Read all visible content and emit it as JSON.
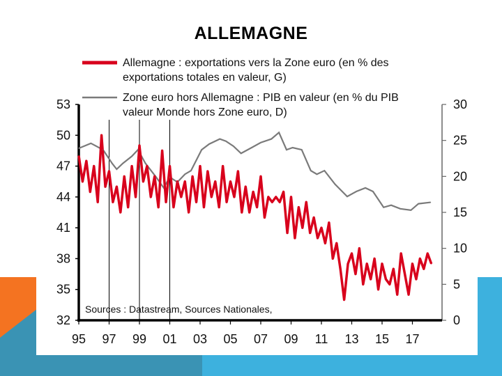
{
  "slide": {
    "title": "ALLEMAGNE",
    "colors": {
      "orange": "#f47321",
      "teal": "#3a93b4",
      "blue": "#3db1de"
    }
  },
  "chart_data": {
    "type": "line",
    "title": "ALLEMAGNE",
    "x_tick_labels": [
      "95",
      "97",
      "99",
      "01",
      "03",
      "05",
      "07",
      "09",
      "11",
      "13",
      "15",
      "17"
    ],
    "x_range": [
      1995,
      2019
    ],
    "y_left": {
      "range": [
        32,
        53
      ],
      "ticks": [
        "32",
        "35",
        "38",
        "41",
        "44",
        "47",
        "50",
        "53"
      ]
    },
    "y_right": {
      "range": [
        0,
        30
      ],
      "ticks": [
        "0",
        "5",
        "10",
        "15",
        "20",
        "25",
        "30"
      ]
    },
    "vertical_markers": [
      1997,
      1999,
      2001
    ],
    "source_note": "Sources : Datastream, Sources Nationales,",
    "series": [
      {
        "name": "Allemagne : exportations vers la Zone euro (en % des exportations totales en valeur, G)",
        "legend_lines": [
          "Allemagne : exportations vers la Zone euro (en % des",
          "exportations totales en valeur, G)"
        ],
        "axis": "left",
        "color": "#d8001c",
        "x_start": 1995,
        "x_step": 0.25,
        "values": [
          48,
          45.5,
          47.5,
          44.5,
          47,
          43.5,
          50,
          45,
          46.5,
          43.5,
          45,
          42.5,
          46,
          43,
          47,
          44,
          49,
          45.5,
          47,
          44,
          46,
          43,
          48.5,
          43.5,
          47,
          43,
          45.5,
          44,
          45.5,
          42.5,
          46,
          43.5,
          47,
          43,
          46.5,
          44,
          45.5,
          43,
          47,
          43.5,
          45.5,
          44,
          46.5,
          42.5,
          45,
          42.5,
          44.5,
          43,
          46,
          42,
          44,
          43.5,
          44,
          43.5,
          44.5,
          40.5,
          44,
          40,
          43,
          41,
          43.5,
          40.5,
          42,
          40,
          41,
          39.5,
          41.5,
          38,
          39.5,
          37,
          34,
          37.5,
          38.5,
          36.5,
          39,
          35.5,
          37.5,
          36,
          38,
          35,
          37.5,
          36,
          35.5,
          37,
          34.5,
          38.5,
          36.5,
          34.5,
          37.5,
          36,
          38,
          37,
          38.5,
          37.5
        ]
      },
      {
        "name": "Zone euro hors Allemagne : PIB en valeur (en % du PIB valeur Monde hors Zone euro, D)",
        "legend_lines": [
          "Zone euro hors Allemagne : PIB en valeur (en % du PIB",
          "valeur Monde hors Zone euro, D)"
        ],
        "axis": "right",
        "color": "#7a7a7a",
        "x": [
          1995.0,
          1995.8,
          1996.6,
          1997.2,
          1997.5,
          1997.9,
          1998.5,
          1998.9,
          1999.4,
          2000.1,
          2000.6,
          2001.0,
          2001.5,
          2002.0,
          2002.4,
          2003.1,
          2003.6,
          2004.3,
          2004.7,
          2005.2,
          2005.7,
          2006.4,
          2007.0,
          2007.7,
          2008.2,
          2008.7,
          2009.1,
          2009.7,
          2010.3,
          2010.7,
          2011.2,
          2011.9,
          2012.7,
          2013.3,
          2013.9,
          2014.4,
          2015.1,
          2015.6,
          2016.2,
          2016.9,
          2017.4,
          2018.2
        ],
        "values": [
          23.9,
          24.6,
          23.7,
          21.8,
          21.0,
          21.8,
          22.8,
          23.7,
          21.8,
          19.9,
          18.4,
          19.9,
          19.2,
          20.3,
          20.8,
          23.7,
          24.5,
          25.2,
          24.9,
          24.2,
          23.2,
          24.0,
          24.7,
          25.2,
          26.1,
          23.7,
          24.0,
          23.7,
          20.8,
          20.3,
          20.8,
          18.9,
          17.2,
          17.9,
          18.4,
          17.9,
          15.7,
          16.0,
          15.5,
          15.3,
          16.2,
          16.4
        ]
      }
    ]
  }
}
